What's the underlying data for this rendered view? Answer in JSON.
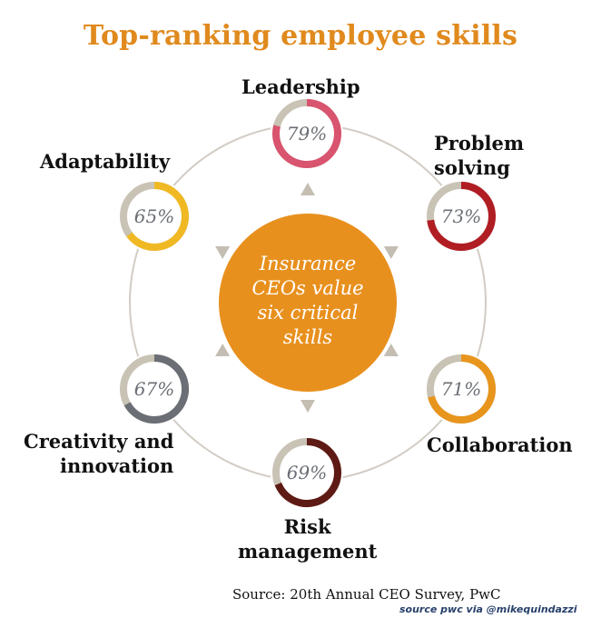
{
  "chart_data": {
    "type": "pie",
    "title": "Top-ranking employee skills",
    "center_text": [
      "Insurance",
      "CEOs value",
      "six critical",
      "skills"
    ],
    "categories": [
      "Leadership",
      "Problem solving",
      "Collaboration",
      "Risk management",
      "Creativity and innovation",
      "Adaptability"
    ],
    "values": [
      79,
      73,
      71,
      69,
      67,
      65
    ],
    "value_labels": [
      "79%",
      "73%",
      "71%",
      "69%",
      "67%",
      "65%"
    ],
    "label_lines": [
      [
        "Leadership"
      ],
      [
        "Problem",
        "solving"
      ],
      [
        "Collaboration"
      ],
      [
        "Risk",
        "management"
      ],
      [
        "Creativity and",
        "innovation"
      ],
      [
        "Adaptability"
      ]
    ],
    "colors": [
      "#d9546e",
      "#b01e24",
      "#e8951e",
      "#5e1a14",
      "#6b6e75",
      "#f0b923"
    ],
    "remainder_color": "#c9c3b5",
    "center_color": "#e8901e",
    "ring_color": "#d2ccc4",
    "arrow_color": "#c3bdb2",
    "source": "Source: 20th Annual CEO Survey, PwC",
    "credit": "source pwc via @mikequindazzi"
  }
}
